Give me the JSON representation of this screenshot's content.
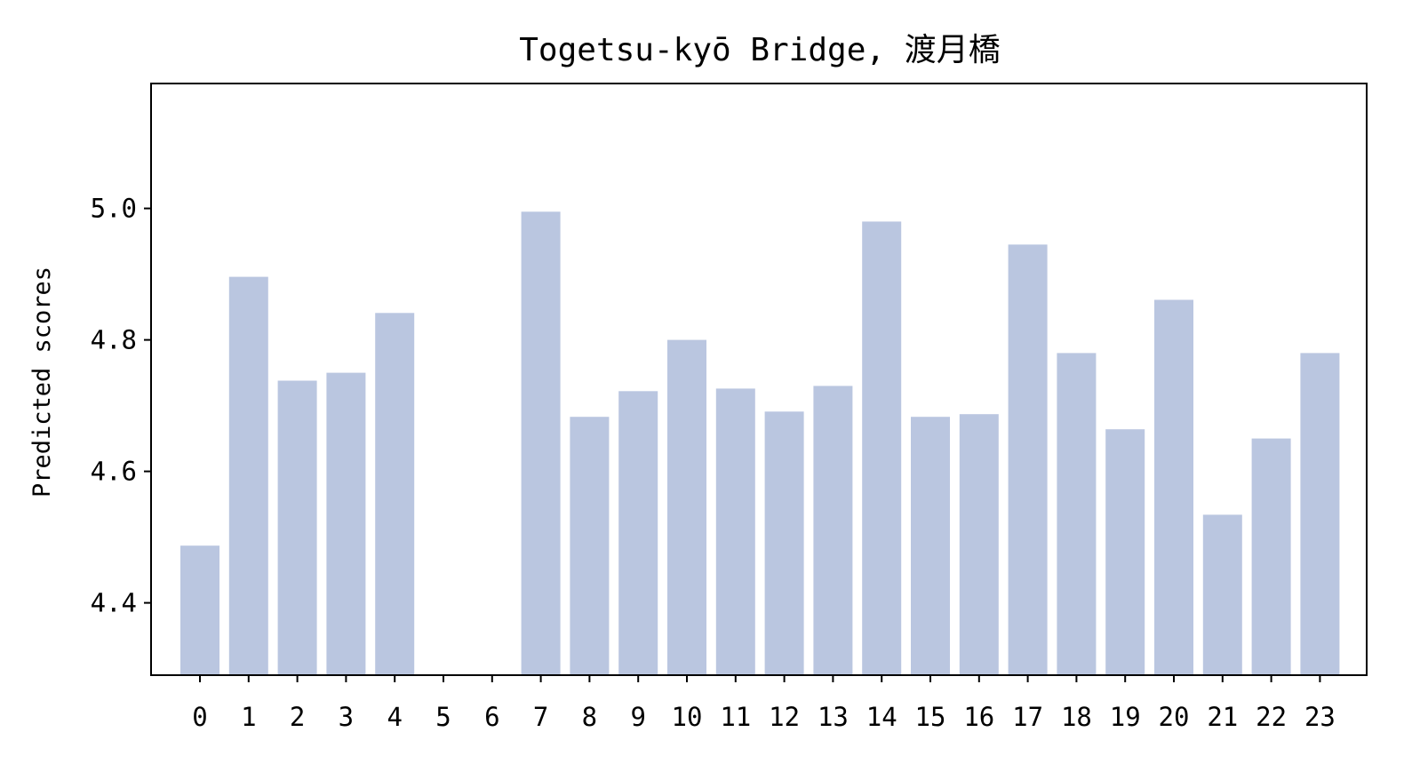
{
  "chart_data": {
    "type": "bar",
    "title": "Togetsu-kyō Bridge, 渡月橋",
    "xlabel": "",
    "ylabel": "Predicted scores",
    "categories": [
      "0",
      "1",
      "2",
      "3",
      "4",
      "5",
      "6",
      "7",
      "8",
      "9",
      "10",
      "11",
      "12",
      "13",
      "14",
      "15",
      "16",
      "17",
      "18",
      "19",
      "20",
      "21",
      "22",
      "23"
    ],
    "values": [
      4.487,
      4.896,
      4.738,
      4.75,
      4.841,
      null,
      null,
      4.995,
      4.683,
      4.722,
      4.8,
      4.726,
      4.691,
      4.73,
      4.98,
      4.683,
      4.687,
      4.945,
      4.78,
      4.664,
      4.861,
      4.534,
      4.65,
      4.78
    ],
    "ylim": [
      4.29,
      5.19
    ],
    "yticks": [
      4.4,
      4.6,
      4.8,
      5.0
    ],
    "ytick_labels": [
      "4.4",
      "4.6",
      "4.8",
      "5.0"
    ],
    "grid": false,
    "colors": {
      "bar": "#bac6e0",
      "axes": "#000000"
    }
  }
}
